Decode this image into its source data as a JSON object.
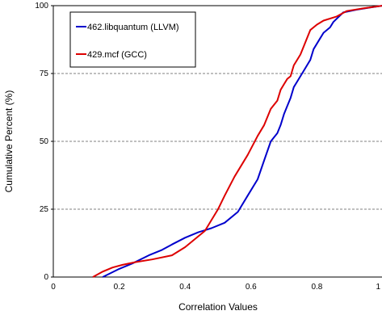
{
  "chart_data": {
    "type": "line",
    "xlabel": "Correlation Values",
    "ylabel": "Cumulative Percent (%)",
    "xlim": [
      0,
      1
    ],
    "ylim": [
      0,
      100
    ],
    "xticks": [
      0,
      0.2,
      0.4,
      0.6,
      0.8,
      1
    ],
    "xtick_labels": [
      "0",
      "0.2",
      "0.4",
      "0.6",
      "0.8",
      "1"
    ],
    "yticks": [
      0,
      25,
      50,
      75,
      100
    ],
    "ytick_labels": [
      "0",
      "25",
      "50",
      "75",
      "100"
    ],
    "grid": "horizontal dashed",
    "legend_position": "top-left",
    "series": [
      {
        "name": "462.libquantum (LLVM)",
        "color": "#0000cc",
        "points": [
          [
            0.15,
            0
          ],
          [
            0.2,
            3
          ],
          [
            0.24,
            5
          ],
          [
            0.29,
            8
          ],
          [
            0.33,
            10
          ],
          [
            0.36,
            12
          ],
          [
            0.4,
            14.5
          ],
          [
            0.44,
            16.5
          ],
          [
            0.48,
            18
          ],
          [
            0.52,
            20
          ],
          [
            0.56,
            24
          ],
          [
            0.59,
            30
          ],
          [
            0.62,
            36
          ],
          [
            0.64,
            43
          ],
          [
            0.66,
            50
          ],
          [
            0.68,
            53
          ],
          [
            0.69,
            56
          ],
          [
            0.7,
            60
          ],
          [
            0.71,
            63
          ],
          [
            0.72,
            66
          ],
          [
            0.73,
            70
          ],
          [
            0.74,
            72
          ],
          [
            0.76,
            76
          ],
          [
            0.78,
            80
          ],
          [
            0.79,
            84
          ],
          [
            0.81,
            88
          ],
          [
            0.82,
            90
          ],
          [
            0.84,
            92
          ],
          [
            0.85,
            94
          ],
          [
            0.88,
            97.5
          ],
          [
            0.92,
            98.5
          ],
          [
            0.96,
            99.3
          ],
          [
            1.0,
            100
          ]
        ]
      },
      {
        "name": "429.mcf (GCC)",
        "color": "#dd0000",
        "points": [
          [
            0.12,
            0
          ],
          [
            0.15,
            2
          ],
          [
            0.18,
            3.5
          ],
          [
            0.21,
            4.5
          ],
          [
            0.25,
            5.5
          ],
          [
            0.3,
            6.5
          ],
          [
            0.36,
            8
          ],
          [
            0.4,
            11
          ],
          [
            0.46,
            17
          ],
          [
            0.5,
            25
          ],
          [
            0.52,
            30
          ],
          [
            0.55,
            37
          ],
          [
            0.59,
            45
          ],
          [
            0.62,
            52
          ],
          [
            0.64,
            56
          ],
          [
            0.66,
            62
          ],
          [
            0.68,
            65
          ],
          [
            0.69,
            69
          ],
          [
            0.7,
            71
          ],
          [
            0.71,
            73
          ],
          [
            0.72,
            74
          ],
          [
            0.73,
            78
          ],
          [
            0.75,
            82
          ],
          [
            0.76,
            85
          ],
          [
            0.78,
            91
          ],
          [
            0.8,
            93
          ],
          [
            0.82,
            94.5
          ],
          [
            0.86,
            96
          ],
          [
            0.89,
            98
          ],
          [
            0.94,
            99
          ],
          [
            1.0,
            100
          ]
        ]
      }
    ]
  }
}
